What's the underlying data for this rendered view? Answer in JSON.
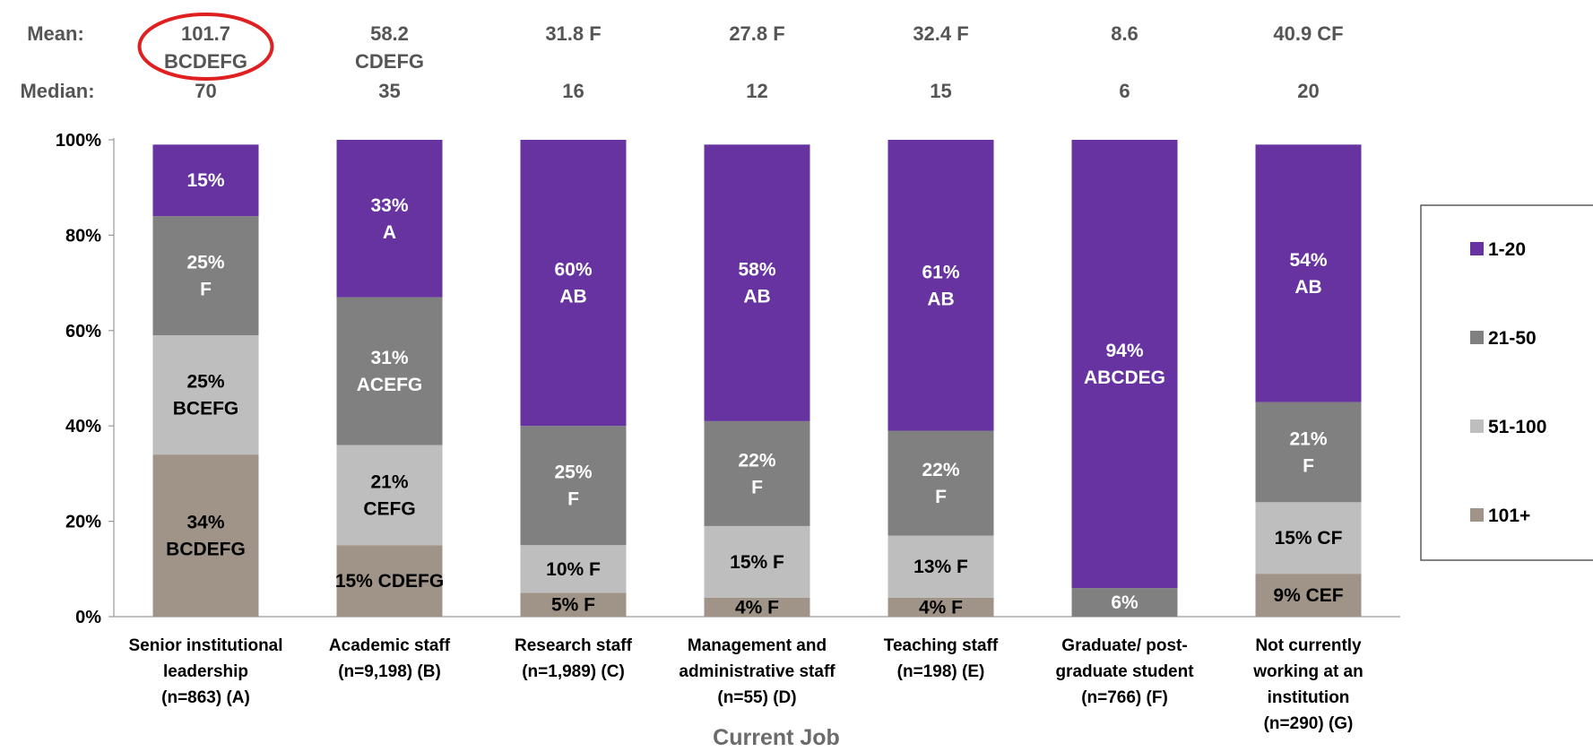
{
  "stats": {
    "mean_label": "Mean:",
    "median_label": "Median:",
    "means": [
      {
        "value": "101.7",
        "sig": "BCDEFG",
        "highlight": true
      },
      {
        "value": "58.2",
        "sig": "CDEFG"
      },
      {
        "value": "31.8 F",
        "sig": ""
      },
      {
        "value": "27.8 F",
        "sig": ""
      },
      {
        "value": "32.4 F",
        "sig": ""
      },
      {
        "value": "8.6",
        "sig": ""
      },
      {
        "value": "40.9 CF",
        "sig": ""
      }
    ],
    "medians": [
      "70",
      "35",
      "16",
      "12",
      "15",
      "6",
      "20"
    ]
  },
  "chart_data": {
    "type": "bar",
    "stacked": true,
    "xlabel": "Current Job",
    "ylabel": "",
    "ylim": [
      0,
      100
    ],
    "yticks": [
      "0%",
      "20%",
      "40%",
      "60%",
      "80%",
      "100%"
    ],
    "categories": [
      [
        "Senior institutional",
        "leadership",
        "(n=863) (A)"
      ],
      [
        "Academic staff",
        "(n=9,198) (B)"
      ],
      [
        "Research staff",
        "(n=1,989) (C)"
      ],
      [
        "Management and",
        "administrative staff",
        "(n=55) (D)"
      ],
      [
        "Teaching staff",
        "(n=198) (E)"
      ],
      [
        "Graduate/ post-",
        "graduate student",
        "(n=766) (F)"
      ],
      [
        "Not currently",
        "working at an",
        "institution",
        "(n=290) (G)"
      ]
    ],
    "series": [
      {
        "name": "101+",
        "color": "#a09488",
        "text_color": "#000000",
        "values": [
          34,
          15,
          5,
          4,
          4,
          0,
          9
        ],
        "labels": [
          [
            "34%",
            "BCDEFG"
          ],
          [
            "15% CDEFG"
          ],
          [
            "5% F"
          ],
          [
            "4% F"
          ],
          [
            "4% F"
          ],
          [],
          [
            "9% CEF"
          ]
        ]
      },
      {
        "name": "51-100",
        "color": "#bebebe",
        "text_color": "#000000",
        "values": [
          25,
          21,
          10,
          15,
          13,
          0,
          15
        ],
        "labels": [
          [
            "25%",
            "BCEFG"
          ],
          [
            "21%",
            "CEFG"
          ],
          [
            "10% F"
          ],
          [
            "15% F"
          ],
          [
            "13% F"
          ],
          [],
          [
            "15% CF"
          ]
        ]
      },
      {
        "name": "21-50",
        "color": "#808080",
        "text_color": "#ffffff",
        "values": [
          25,
          31,
          25,
          22,
          22,
          6,
          21
        ],
        "labels": [
          [
            "25%",
            "F"
          ],
          [
            "31%",
            "ACEFG"
          ],
          [
            "25%",
            "F"
          ],
          [
            "22%",
            "F"
          ],
          [
            "22%",
            "F"
          ],
          [
            "6%"
          ],
          [
            "21%",
            "F"
          ]
        ]
      },
      {
        "name": "1-20",
        "color": "#6633a0",
        "text_color": "#ffffff",
        "values": [
          15,
          33,
          60,
          58,
          61,
          94,
          54
        ],
        "labels": [
          [
            "15%"
          ],
          [
            "33%",
            "A"
          ],
          [
            "60%",
            "AB"
          ],
          [
            "58%",
            "AB"
          ],
          [
            "61%",
            "AB"
          ],
          [
            "94%",
            "ABCDEG"
          ],
          [
            "54%",
            "AB"
          ]
        ]
      }
    ],
    "legend": {
      "position": "right",
      "order": [
        "1-20",
        "21-50",
        "51-100",
        "101+"
      ]
    },
    "highlight_color": "#e02020"
  }
}
